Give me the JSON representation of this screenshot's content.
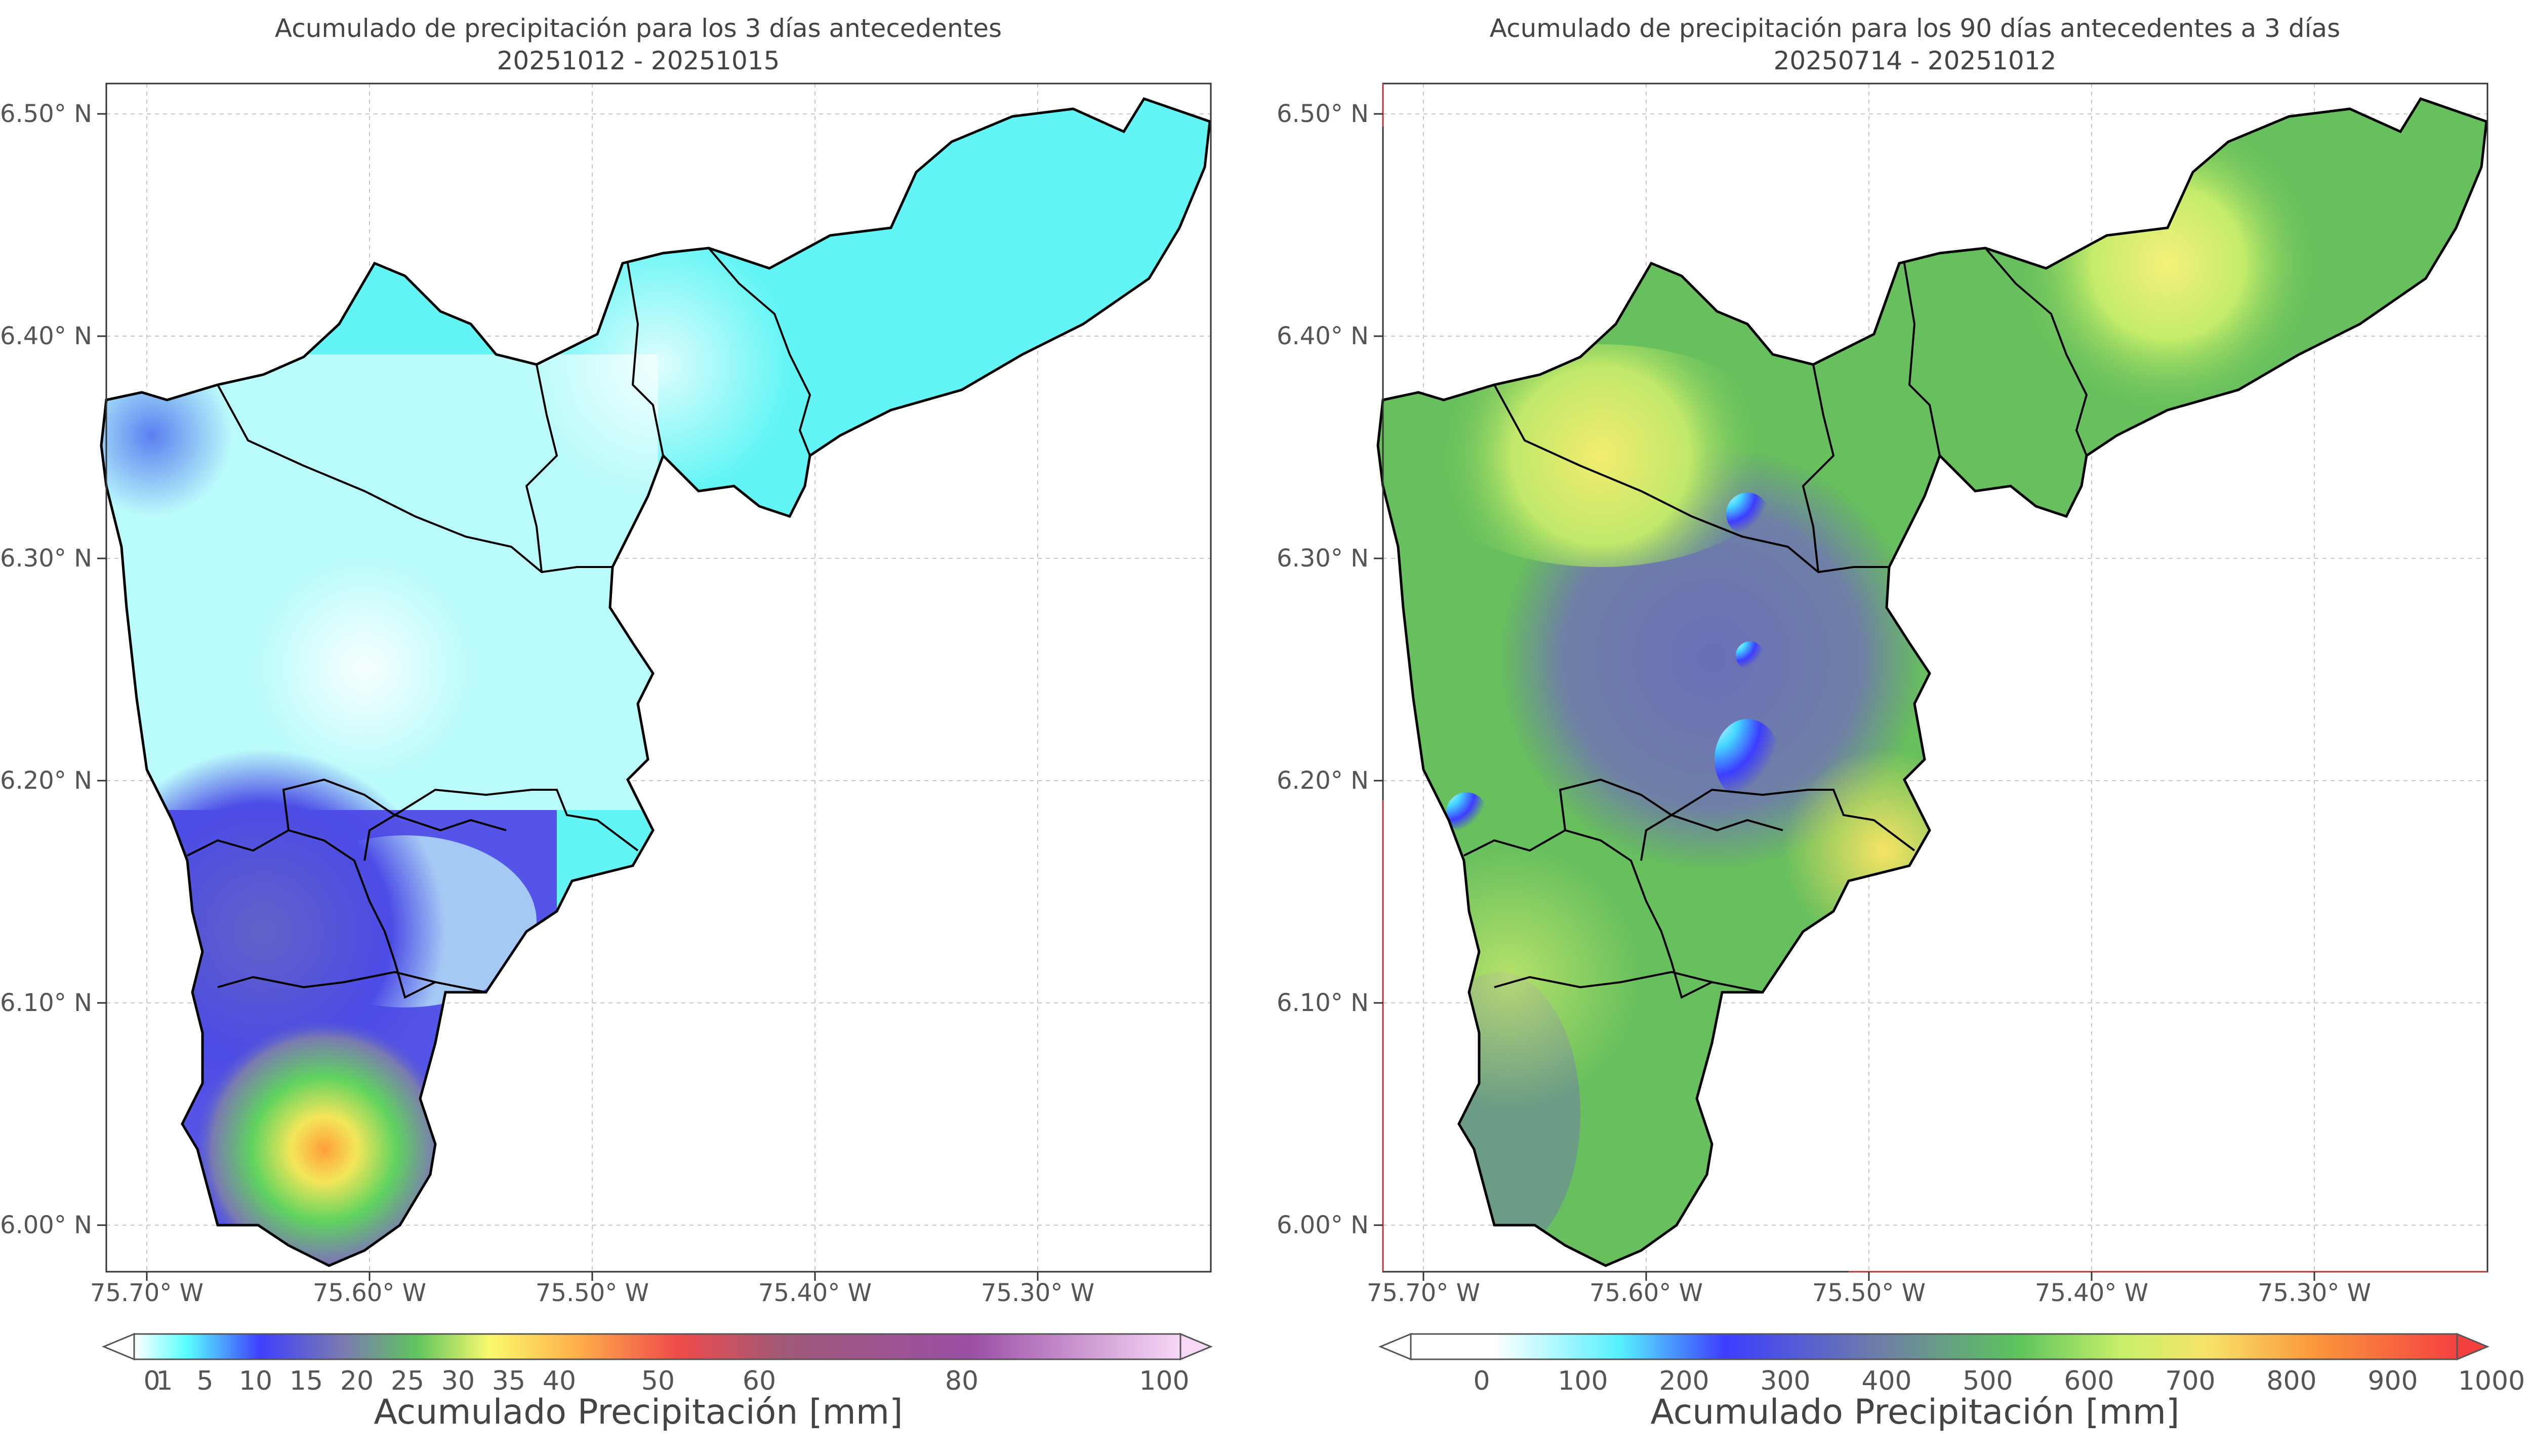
{
  "colors": {
    "left_ramp": [
      "#ffffff",
      "#59ffff",
      "#3f3fff",
      "#7b7bb0",
      "#5fc45f",
      "#fafa6e",
      "#ffb24a",
      "#ef4a4a",
      "#a05a78",
      "#9b4fa6",
      "#f7d8f7"
    ],
    "right_ramp": [
      "#ffffff",
      "#56f0ff",
      "#3d3dff",
      "#6f7fa6",
      "#5cc45c",
      "#c9f06a",
      "#f7e46a",
      "#fa9a3c",
      "#f54040"
    ],
    "boundary": "#000000",
    "frame": "#333333",
    "grid": "#bbbbbb"
  },
  "left_panel": {
    "title_line1": "Acumulado de precipitación para los 3 días antecedentes",
    "title_line2": "20251012 - 20251015",
    "lon_labels": [
      "75.70° W",
      "75.60° W",
      "75.50° W",
      "75.40° W",
      "75.30° W"
    ],
    "lat_labels": [
      "6.50° N",
      "6.40° N",
      "6.30° N",
      "6.20° N",
      "6.10° N",
      "6.00° N"
    ],
    "colorbar_ticks": [
      "0",
      "1",
      "5",
      "10",
      "15",
      "20",
      "25",
      "30",
      "35",
      "40",
      "50",
      "60",
      "80",
      "100"
    ],
    "colorbar_label": "Acumulado Precipitación [mm]"
  },
  "right_panel": {
    "title_line1": "Acumulado de precipitación para los 90 días antecedentes a 3 días",
    "title_line2": "20250714 - 20251012",
    "lon_labels": [
      "75.70° W",
      "75.60° W",
      "75.50° W",
      "75.40° W",
      "75.30° W"
    ],
    "lat_labels": [
      "6.50° N",
      "6.40° N",
      "6.30° N",
      "6.20° N",
      "6.10° N",
      "6.00° N"
    ],
    "colorbar_ticks": [
      "0",
      "100",
      "200",
      "300",
      "400",
      "500",
      "600",
      "700",
      "800",
      "900",
      "1000"
    ],
    "colorbar_label": "Acumulado Precipitación [mm]"
  }
}
